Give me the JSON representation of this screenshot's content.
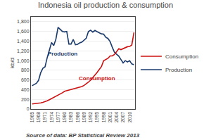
{
  "chart_data": {
    "type": "line",
    "title": "Indonesia oil production & consumption",
    "ylabel": "kb/d",
    "source": "Source of data: BP Statistical Review 2013",
    "x": [
      1965,
      1966,
      1967,
      1968,
      1969,
      1970,
      1971,
      1972,
      1973,
      1974,
      1975,
      1976,
      1977,
      1978,
      1979,
      1980,
      1981,
      1982,
      1983,
      1984,
      1985,
      1986,
      1987,
      1988,
      1989,
      1990,
      1991,
      1992,
      1993,
      1994,
      1995,
      1996,
      1997,
      1998,
      1999,
      2000,
      2001,
      2002,
      2003,
      2004,
      2005,
      2006,
      2007,
      2008,
      2009,
      2010,
      2011,
      2012
    ],
    "series": [
      {
        "name": "Production",
        "color": "#1a3a6b",
        "values": [
          480,
          500,
          530,
          590,
          750,
          840,
          870,
          1060,
          1200,
          1370,
          1310,
          1440,
          1685,
          1640,
          1600,
          1590,
          1600,
          1340,
          1340,
          1435,
          1325,
          1335,
          1365,
          1380,
          1425,
          1460,
          1600,
          1625,
          1585,
          1620,
          1595,
          1575,
          1550,
          1545,
          1480,
          1455,
          1390,
          1275,
          1170,
          1130,
          1090,
          1020,
          950,
          998,
          970,
          995,
          930,
          915
        ]
      },
      {
        "name": "Consumption",
        "color": "#cc1111",
        "values": [
          105,
          108,
          112,
          118,
          128,
          138,
          152,
          170,
          192,
          215,
          237,
          258,
          280,
          305,
          335,
          365,
          378,
          385,
          398,
          415,
          428,
          445,
          458,
          465,
          488,
          518,
          555,
          595,
          645,
          695,
          755,
          815,
          875,
          995,
          1015,
          1045,
          1095,
          1095,
          1125,
          1195,
          1245,
          1225,
          1245,
          1255,
          1285,
          1290,
          1320,
          1580
        ]
      }
    ],
    "xlim": [
      1964.5,
      2012.5
    ],
    "xticks": [
      1965,
      1968,
      1971,
      1974,
      1977,
      1980,
      1983,
      1986,
      1989,
      1992,
      1995,
      1998,
      2001,
      2004,
      2007,
      2010
    ],
    "ylim": [
      0,
      1900
    ],
    "yticks": [
      0,
      200,
      400,
      600,
      800,
      {
        "value": 1000,
        "label": "1,000"
      },
      {
        "value": 1200,
        "label": "1,200"
      },
      {
        "value": 1400,
        "label": "1,400"
      },
      {
        "value": 1600,
        "label": "1,600"
      },
      {
        "value": 1800,
        "label": "1,800"
      }
    ],
    "grid": true,
    "legend": "right",
    "annotations": [
      {
        "text": "Production",
        "x": 1971.5,
        "y": 1050,
        "color": "#1a3a6b"
      },
      {
        "text": "Consumption",
        "x": 1986,
        "y": 530,
        "color": "#cc1111"
      }
    ]
  }
}
